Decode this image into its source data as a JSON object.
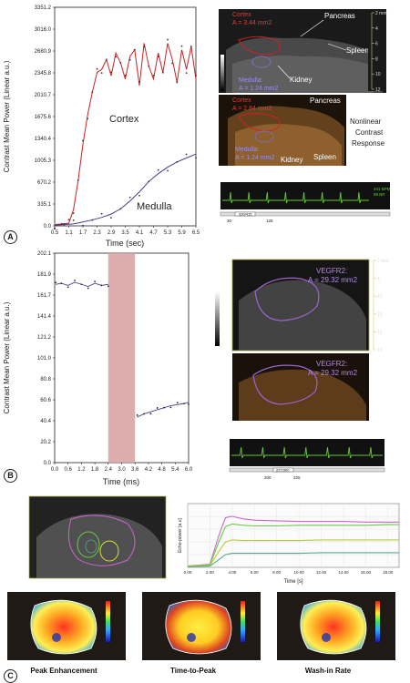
{
  "panel_a": {
    "letter": "A",
    "chart_data": {
      "type": "line",
      "ylabel": "Contrast Mean Power (Linear a.u.)",
      "xlabel": "Time (sec)",
      "x_ticks": [
        "0.5",
        "1.1",
        "1.7",
        "2.3",
        "2.9",
        "3.5",
        "4.1",
        "4.7",
        "5.3",
        "5.9",
        "6.5"
      ],
      "y_ticks": [
        "0.0",
        "335.1",
        "670.2",
        "1005.3",
        "1340.4",
        "1675.6",
        "2010.7",
        "2345.8",
        "2680.9",
        "3016.0",
        "3351.2"
      ],
      "xlim": [
        0.5,
        6.5
      ],
      "ylim": [
        0,
        3351.2
      ],
      "series": [
        {
          "name": "Cortex",
          "x": [
            0.5,
            0.8,
            1.1,
            1.3,
            1.5,
            1.7,
            1.9,
            2.1,
            2.3,
            2.5,
            2.7,
            2.9,
            3.1,
            3.3,
            3.5,
            3.7,
            3.9,
            4.1,
            4.3,
            4.5,
            4.7,
            4.9,
            5.1,
            5.3,
            5.5,
            5.7,
            5.9,
            6.1,
            6.3,
            6.5
          ],
          "y": [
            20,
            30,
            40,
            250,
            700,
            1250,
            1700,
            2050,
            2350,
            2400,
            2550,
            2300,
            2650,
            2500,
            2250,
            2600,
            2700,
            2150,
            2800,
            2450,
            2250,
            2650,
            2350,
            2800,
            2550,
            2200,
            2700,
            2400,
            2750,
            2250
          ]
        },
        {
          "name": "Medulla",
          "x": [
            0.5,
            0.9,
            1.3,
            1.7,
            2.1,
            2.5,
            2.9,
            3.3,
            3.7,
            4.1,
            4.5,
            4.9,
            5.3,
            5.7,
            6.1,
            6.5
          ],
          "y": [
            10,
            20,
            30,
            60,
            90,
            130,
            180,
            260,
            380,
            520,
            680,
            800,
            900,
            980,
            1040,
            1100
          ]
        }
      ]
    },
    "us_top": {
      "cortex_label": "Cortex",
      "cortex_area": "A = 3.44 mm2",
      "medulla_label": "Medulla:",
      "medulla_area": "A = 1.24 mm2",
      "pancreas": "Pancreas",
      "spleen": "Spleen",
      "kidney": "Kidney"
    },
    "us_bottom": {
      "cortex_label": "Cortex",
      "cortex_area": "A = 2.84 mm2",
      "medulla_label": "Medulla:",
      "medulla_area": "A = 1.24 mm2",
      "pancreas": "Pancreas",
      "spleen": "Spleen",
      "kidney": "Kidney",
      "nonlinear_1": "Nonlinear",
      "nonlinear_2": "Contrast",
      "nonlinear_3": "Response"
    },
    "scale_ticks": [
      "2 mm",
      "4",
      "6",
      "8",
      "10",
      "12"
    ],
    "ecg": {
      "frame": "330/415",
      "t1": "30",
      "t2": "125",
      "bpm": "441 BPM",
      "resp": "85 BR"
    }
  },
  "panel_b": {
    "letter": "B",
    "chart_data": {
      "type": "scatter",
      "ylabel": "Contrast Mean Power (Linear a.u.)",
      "xlabel": "Time (ms)",
      "x_ticks": [
        "0.0",
        "0.6",
        "1.2",
        "1.8",
        "2.4",
        "3.0",
        "3.6",
        "4.2",
        "4.8",
        "5.4",
        "6.0"
      ],
      "y_ticks": [
        "0.0",
        "20.2",
        "40.4",
        "60.6",
        "80.8",
        "101.0",
        "121.2",
        "141.4",
        "161.7",
        "181.9",
        "202.1"
      ],
      "xlim": [
        0,
        6.0
      ],
      "ylim": [
        0,
        202.1
      ],
      "highlight": [
        2.4,
        3.6
      ],
      "series": [
        {
          "name": "",
          "x": [
            0.05,
            0.3,
            0.6,
            0.9,
            1.2,
            1.5,
            1.8,
            2.1,
            2.4
          ],
          "y": [
            172,
            173,
            171,
            174,
            172,
            170,
            173,
            171,
            172
          ]
        },
        {
          "name": "",
          "x": [
            3.7,
            4.0,
            4.3,
            4.6,
            4.9,
            5.2,
            5.5,
            5.8,
            6.0
          ],
          "y": [
            44,
            47,
            49,
            51,
            53,
            55,
            56,
            57,
            58
          ]
        }
      ]
    },
    "us_top": {
      "label": "VEGFR2:",
      "area": "A = 29.32 mm2"
    },
    "us_bottom": {
      "label": "VEGFR2:",
      "area": "A = 29.32 mm2"
    },
    "scale_ticks": [
      "2 mm",
      "4",
      "47",
      "10",
      "12",
      "13"
    ],
    "ecg": {
      "frame": "227/300",
      "t1": "200",
      "t2": "225"
    }
  },
  "panel_c": {
    "letter": "C",
    "chart_data": {
      "type": "line",
      "ylabel": "Echo-power [a.u]",
      "xlabel": "Time [s]",
      "x_ticks": [
        "0.00",
        "2.00",
        "4.00",
        "6.00",
        "8.00",
        "10.00",
        "12.00",
        "14.00",
        "16.00",
        "18.00"
      ],
      "xlim": [
        0,
        19
      ],
      "ylim": [
        0,
        1
      ],
      "series": [
        {
          "name": "",
          "color": "#cc66cc",
          "x": [
            0,
            2,
            2.8,
            3.4,
            4,
            5,
            6,
            8,
            10,
            12,
            14,
            16,
            18,
            19
          ],
          "y": [
            0.02,
            0.05,
            0.5,
            0.78,
            0.8,
            0.76,
            0.74,
            0.73,
            0.72,
            0.72,
            0.72,
            0.71,
            0.71,
            0.71
          ]
        },
        {
          "name": "",
          "color": "#66cc44",
          "x": [
            0,
            2,
            2.8,
            3.4,
            4,
            5,
            6,
            8,
            10,
            12,
            14,
            16,
            18,
            19
          ],
          "y": [
            0.02,
            0.04,
            0.4,
            0.64,
            0.68,
            0.66,
            0.65,
            0.65,
            0.66,
            0.66,
            0.66,
            0.66,
            0.67,
            0.67
          ]
        },
        {
          "name": "",
          "color": "#bbcc33",
          "x": [
            0,
            2,
            2.8,
            3.4,
            4,
            5,
            6,
            8,
            10,
            12,
            14,
            16,
            18,
            19
          ],
          "y": [
            0.02,
            0.03,
            0.25,
            0.4,
            0.43,
            0.42,
            0.42,
            0.42,
            0.42,
            0.43,
            0.43,
            0.43,
            0.43,
            0.43
          ]
        },
        {
          "name": "",
          "color": "#55aa88",
          "x": [
            0,
            2,
            2.8,
            3.4,
            4,
            5,
            6,
            8,
            10,
            12,
            14,
            16,
            18,
            19
          ],
          "y": [
            0.01,
            0.02,
            0.12,
            0.2,
            0.22,
            0.22,
            0.22,
            0.22,
            0.22,
            0.23,
            0.23,
            0.23,
            0.23,
            0.23
          ]
        }
      ]
    },
    "maps": [
      {
        "caption": "Peak Enhancement"
      },
      {
        "caption": "Time-to-Peak"
      },
      {
        "caption": "Wash-in Rate"
      }
    ]
  },
  "colors": {
    "cortex": "#cc2222",
    "medulla": "#4a3c8c",
    "vegfr": "#9966cc",
    "highlight": "#d9a3a3",
    "ecg": "#66cc33"
  }
}
